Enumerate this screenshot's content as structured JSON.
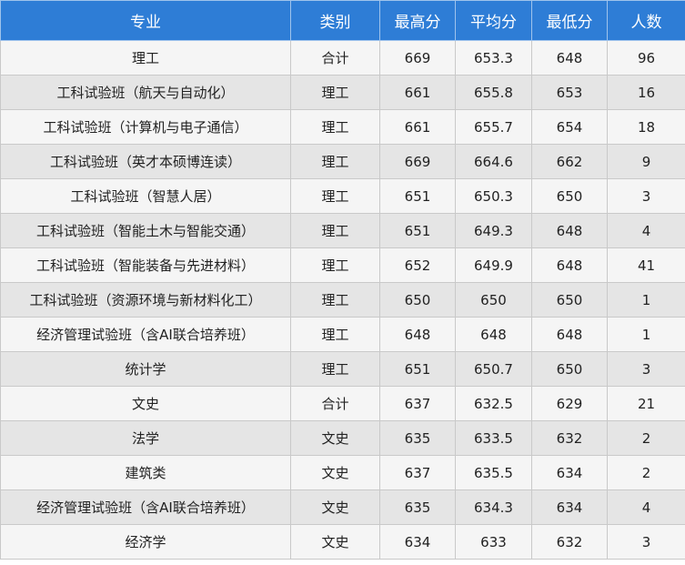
{
  "table": {
    "headers": [
      "专业",
      "类别",
      "最高分",
      "平均分",
      "最低分",
      "人数"
    ],
    "rows": [
      [
        "理工",
        "合计",
        "669",
        "653.3",
        "648",
        "96"
      ],
      [
        "工科试验班（航天与自动化）",
        "理工",
        "661",
        "655.8",
        "653",
        "16"
      ],
      [
        "工科试验班（计算机与电子通信）",
        "理工",
        "661",
        "655.7",
        "654",
        "18"
      ],
      [
        "工科试验班（英才本硕博连读）",
        "理工",
        "669",
        "664.6",
        "662",
        "9"
      ],
      [
        "工科试验班（智慧人居）",
        "理工",
        "651",
        "650.3",
        "650",
        "3"
      ],
      [
        "工科试验班（智能土木与智能交通）",
        "理工",
        "651",
        "649.3",
        "648",
        "4"
      ],
      [
        "工科试验班（智能装备与先进材料）",
        "理工",
        "652",
        "649.9",
        "648",
        "41"
      ],
      [
        "工科试验班（资源环境与新材料化工）",
        "理工",
        "650",
        "650",
        "650",
        "1"
      ],
      [
        "经济管理试验班（含AI联合培养班）",
        "理工",
        "648",
        "648",
        "648",
        "1"
      ],
      [
        "统计学",
        "理工",
        "651",
        "650.7",
        "650",
        "3"
      ],
      [
        "文史",
        "合计",
        "637",
        "632.5",
        "629",
        "21"
      ],
      [
        "法学",
        "文史",
        "635",
        "633.5",
        "632",
        "2"
      ],
      [
        "建筑类",
        "文史",
        "637",
        "635.5",
        "634",
        "2"
      ],
      [
        "经济管理试验班（含AI联合培养班）",
        "文史",
        "635",
        "634.3",
        "634",
        "4"
      ],
      [
        "经济学",
        "文史",
        "634",
        "633",
        "632",
        "3"
      ]
    ]
  }
}
